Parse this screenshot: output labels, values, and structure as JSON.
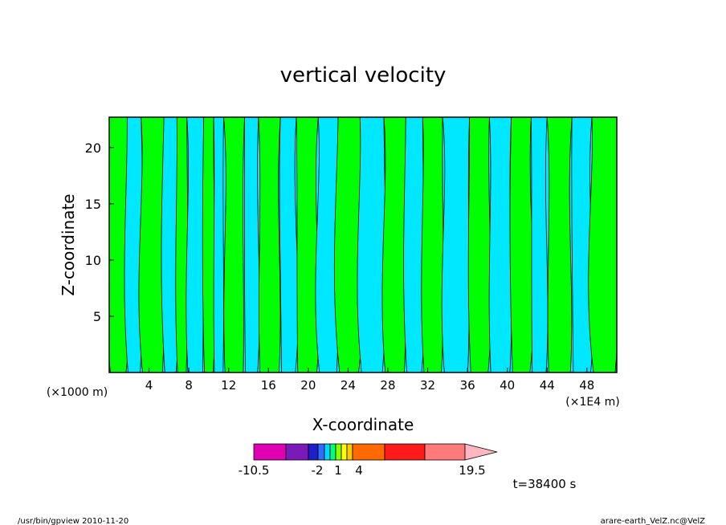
{
  "chart_data": {
    "type": "heatmap",
    "title": "vertical velocity",
    "xlabel": "X-coordinate",
    "ylabel": "Z-coordinate",
    "x_unit_left": "(×1000 m)",
    "x_unit_right": "(×1E4 m)",
    "xlim": [
      0,
      51
    ],
    "ylim": [
      0,
      22.7
    ],
    "x_ticks": [
      4,
      8,
      12,
      16,
      20,
      24,
      28,
      32,
      36,
      40,
      44,
      48
    ],
    "y_ticks": [
      5,
      10,
      15,
      20
    ],
    "colors": {
      "cyan": "#00e8ff",
      "green": "#00ff00"
    },
    "bands_x": [
      0,
      1.8,
      3.2,
      5.5,
      6.8,
      7.8,
      9.5,
      10.5,
      11.5,
      13.6,
      15.0,
      17.2,
      18.8,
      21.0,
      23.0,
      25.2,
      27.6,
      29.8,
      31.5,
      33.5,
      36.2,
      38.2,
      40.4,
      42.4,
      44.0,
      46.5,
      48.5,
      51
    ],
    "band_values": [
      1,
      0,
      1,
      0,
      1,
      0,
      1,
      0,
      1,
      0,
      1,
      0,
      1,
      0,
      1,
      0,
      1,
      0,
      1,
      0,
      1,
      0,
      1,
      0,
      1,
      0,
      1
    ],
    "colorbar": {
      "labels": [
        "-10.5",
        "-2",
        "1",
        "4",
        "19.5"
      ],
      "colors": [
        "#e000b4",
        "#7a1ab8",
        "#1f1fc8",
        "#2f6cff",
        "#00d8ff",
        "#00ff7a",
        "#88ff00",
        "#ffff00",
        "#ffc800",
        "#ff6a00",
        "#ff1a1a",
        "#ff7a7a",
        "#ffb6c1"
      ]
    },
    "time_label": "t=38400 s"
  },
  "footer": {
    "left": "/usr/bin/gpview   2010-11-20",
    "right": "arare-earth_VelZ.nc@VelZ"
  }
}
